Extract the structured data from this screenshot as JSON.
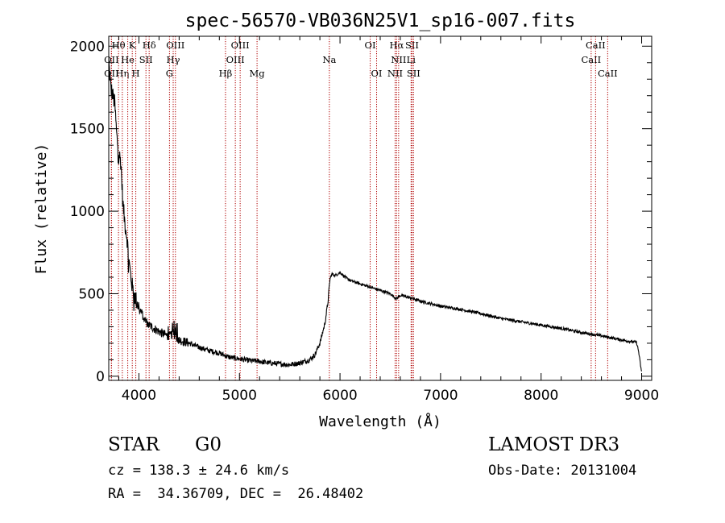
{
  "chart_data": {
    "type": "line",
    "title": "spec-56570-VB036N25V1_sp16-007.fits",
    "xlabel": "Wavelength (Å)",
    "ylabel": "Flux (relative)",
    "xlim": [
      3700,
      9100
    ],
    "ylim": [
      -25,
      2060
    ],
    "xticks": [
      4000,
      5000,
      6000,
      7000,
      8000,
      9000
    ],
    "yticks": [
      0,
      500,
      1000,
      1500,
      2000
    ],
    "series": [
      {
        "name": "flux",
        "x": [
          3700,
          3720,
          3740,
          3760,
          3780,
          3800,
          3820,
          3840,
          3860,
          3880,
          3900,
          3920,
          3940,
          3960,
          3980,
          4000,
          4030,
          4060,
          4100,
          4150,
          4200,
          4250,
          4300,
          4340,
          4400,
          4500,
          4600,
          4700,
          4800,
          4860,
          4900,
          5000,
          5100,
          5200,
          5300,
          5400,
          5500,
          5600,
          5700,
          5750,
          5800,
          5850,
          5880,
          5900,
          5920,
          5950,
          6000,
          6050,
          6100,
          6200,
          6300,
          6400,
          6500,
          6560,
          6600,
          6700,
          6800,
          6900,
          7000,
          7200,
          7400,
          7600,
          7800,
          8000,
          8200,
          8400,
          8600,
          8800,
          8950,
          8970,
          9000
        ],
        "y": [
          1900,
          1750,
          1700,
          1650,
          1450,
          1350,
          1300,
          1050,
          930,
          850,
          700,
          600,
          520,
          480,
          450,
          420,
          380,
          340,
          310,
          290,
          270,
          255,
          240,
          260,
          220,
          200,
          175,
          155,
          140,
          125,
          115,
          105,
          95,
          90,
          80,
          75,
          70,
          80,
          100,
          130,
          200,
          320,
          450,
          590,
          620,
          610,
          630,
          600,
          580,
          560,
          540,
          520,
          500,
          470,
          490,
          475,
          455,
          440,
          425,
          405,
          380,
          350,
          330,
          310,
          290,
          265,
          245,
          220,
          205,
          150,
          20
        ]
      }
    ],
    "lines": [
      {
        "label": "OII",
        "x": 3727,
        "row": 1
      },
      {
        "label": "OII",
        "x": 3727,
        "row": 2
      },
      {
        "label": "Hθ",
        "x": 3797,
        "row": 0
      },
      {
        "label": "Hη",
        "x": 3835,
        "row": 2
      },
      {
        "label": "He",
        "x": 3889,
        "row": 1
      },
      {
        "label": "K",
        "x": 3934,
        "row": 0
      },
      {
        "label": "H",
        "x": 3969,
        "row": 2
      },
      {
        "label": "SII",
        "x": 4070,
        "row": 1
      },
      {
        "label": "Hδ",
        "x": 4102,
        "row": 0
      },
      {
        "label": "G",
        "x": 4304,
        "row": 2
      },
      {
        "label": "Hγ",
        "x": 4341,
        "row": 1
      },
      {
        "label": "OIII",
        "x": 4363,
        "row": 0
      },
      {
        "label": "Hβ",
        "x": 4861,
        "row": 2
      },
      {
        "label": "OIII",
        "x": 4959,
        "row": 1
      },
      {
        "label": "OIII",
        "x": 5007,
        "row": 0
      },
      {
        "label": "Mg",
        "x": 5175,
        "row": 2
      },
      {
        "label": "Na",
        "x": 5894,
        "row": 1
      },
      {
        "label": "OI",
        "x": 6300,
        "row": 0
      },
      {
        "label": "OI",
        "x": 6364,
        "row": 2
      },
      {
        "label": "NII",
        "x": 6548,
        "row": 2
      },
      {
        "label": "Hα",
        "x": 6563,
        "row": 0
      },
      {
        "label": "NII",
        "x": 6583,
        "row": 1
      },
      {
        "label": "Li",
        "x": 6707,
        "row": 1
      },
      {
        "label": "SII",
        "x": 6716,
        "row": 0
      },
      {
        "label": "SII",
        "x": 6731,
        "row": 2
      },
      {
        "label": "CaII",
        "x": 8498,
        "row": 1
      },
      {
        "label": "CaII",
        "x": 8542,
        "row": 0
      },
      {
        "label": "CaII",
        "x": 8662,
        "row": 2
      }
    ]
  },
  "info": {
    "object_class": "STAR",
    "subclass": "G0",
    "survey": "LAMOST DR3",
    "redshift": "cz = 138.3 ± 24.6 km/s",
    "obs_date": "Obs-Date: 20131004",
    "coords": "RA =  34.36709, DEC =  26.48402"
  },
  "colors": {
    "line": "#000000",
    "marker": "#b00000",
    "background": "#ffffff"
  }
}
